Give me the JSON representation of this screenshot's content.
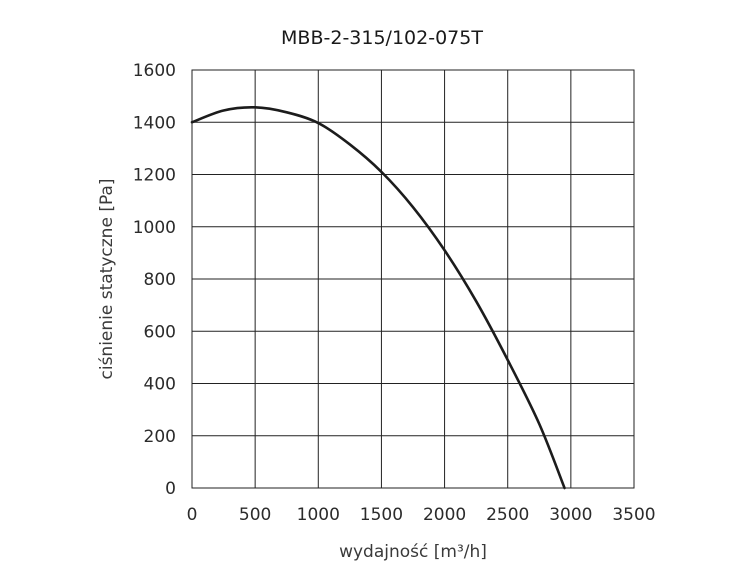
{
  "chart_data": {
    "type": "line",
    "title": "MBB-2-315/102-075T",
    "xlabel": "wydajność [m³/h]",
    "ylabel": "ciśnienie statyczne [Pa]",
    "xlim": [
      0,
      3500
    ],
    "ylim": [
      0,
      1600
    ],
    "xticks": [
      0,
      500,
      1000,
      1500,
      2000,
      2500,
      3000,
      3500
    ],
    "yticks": [
      0,
      200,
      400,
      600,
      800,
      1000,
      1200,
      1400,
      1600
    ],
    "grid": true,
    "series": [
      {
        "color": "#1c1c1c",
        "x": [
          0,
          250,
          500,
          750,
          1000,
          1250,
          1500,
          1750,
          2000,
          2250,
          2500,
          2750,
          2950
        ],
        "y": [
          1400,
          1445,
          1457,
          1438,
          1397,
          1315,
          1210,
          1075,
          910,
          715,
          490,
          245,
          0
        ]
      }
    ]
  }
}
